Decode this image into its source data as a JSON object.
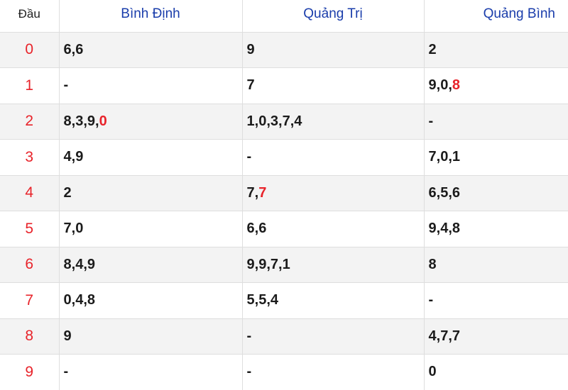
{
  "table": {
    "headers": {
      "head": "Đầu",
      "provinces": [
        "Bình Định",
        "Quảng Trị",
        "Quảng Bình"
      ]
    },
    "rows": [
      {
        "head": "0",
        "cells": [
          [
            {
              "v": "6"
            },
            {
              "v": "6"
            }
          ],
          [
            {
              "v": "9"
            }
          ],
          [
            {
              "v": "2"
            }
          ]
        ]
      },
      {
        "head": "1",
        "cells": [
          [
            {
              "v": "-"
            }
          ],
          [
            {
              "v": "7"
            }
          ],
          [
            {
              "v": "9"
            },
            {
              "v": "0"
            },
            {
              "v": "8",
              "hl": true
            }
          ]
        ]
      },
      {
        "head": "2",
        "cells": [
          [
            {
              "v": "8"
            },
            {
              "v": "3"
            },
            {
              "v": "9"
            },
            {
              "v": "0",
              "hl": true
            }
          ],
          [
            {
              "v": "1"
            },
            {
              "v": "0"
            },
            {
              "v": "3"
            },
            {
              "v": "7"
            },
            {
              "v": "4"
            }
          ],
          [
            {
              "v": "-"
            }
          ]
        ]
      },
      {
        "head": "3",
        "cells": [
          [
            {
              "v": "4"
            },
            {
              "v": "9"
            }
          ],
          [
            {
              "v": "-"
            }
          ],
          [
            {
              "v": "7"
            },
            {
              "v": "0"
            },
            {
              "v": "1"
            }
          ]
        ]
      },
      {
        "head": "4",
        "cells": [
          [
            {
              "v": "2"
            }
          ],
          [
            {
              "v": "7"
            },
            {
              "v": "7",
              "hl": true
            }
          ],
          [
            {
              "v": "6"
            },
            {
              "v": "5"
            },
            {
              "v": "6"
            }
          ]
        ]
      },
      {
        "head": "5",
        "cells": [
          [
            {
              "v": "7"
            },
            {
              "v": "0"
            }
          ],
          [
            {
              "v": "6"
            },
            {
              "v": "6"
            }
          ],
          [
            {
              "v": "9"
            },
            {
              "v": "4"
            },
            {
              "v": "8"
            }
          ]
        ]
      },
      {
        "head": "6",
        "cells": [
          [
            {
              "v": "8"
            },
            {
              "v": "4"
            },
            {
              "v": "9"
            }
          ],
          [
            {
              "v": "9"
            },
            {
              "v": "9"
            },
            {
              "v": "7"
            },
            {
              "v": "1"
            }
          ],
          [
            {
              "v": "8"
            }
          ]
        ]
      },
      {
        "head": "7",
        "cells": [
          [
            {
              "v": "0"
            },
            {
              "v": "4"
            },
            {
              "v": "8"
            }
          ],
          [
            {
              "v": "5"
            },
            {
              "v": "5"
            },
            {
              "v": "4"
            }
          ],
          [
            {
              "v": "-"
            }
          ]
        ]
      },
      {
        "head": "8",
        "cells": [
          [
            {
              "v": "9"
            }
          ],
          [
            {
              "v": "-"
            }
          ],
          [
            {
              "v": "4"
            },
            {
              "v": "7"
            },
            {
              "v": "7"
            }
          ]
        ]
      },
      {
        "head": "9",
        "cells": [
          [
            {
              "v": "-"
            }
          ],
          [
            {
              "v": "-"
            }
          ],
          [
            {
              "v": "0"
            }
          ]
        ]
      }
    ]
  },
  "colors": {
    "head_digit": "#e8232a",
    "highlight": "#e8232a",
    "province_header": "#1a3dab",
    "text": "#1b1b1b",
    "row_stripe": "#f3f3f3",
    "border": "#dedede"
  }
}
